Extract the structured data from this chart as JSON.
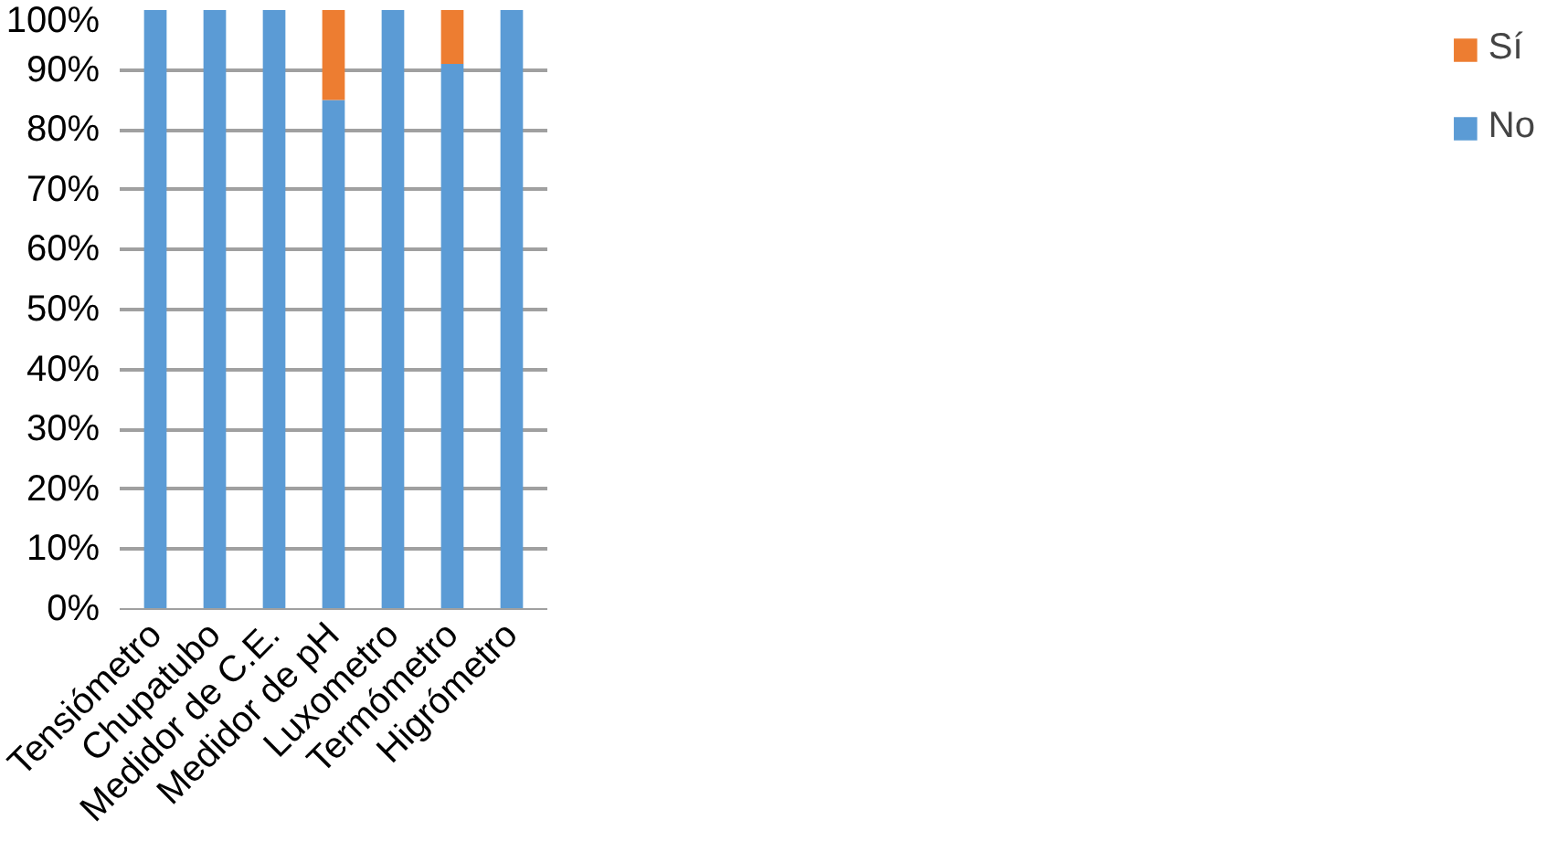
{
  "chart_data": {
    "type": "bar",
    "stacked": true,
    "categories": [
      "Tensiómetro",
      "Chupatubo",
      "Medidor de C.E.",
      "Medidor de pH",
      "Luxometro",
      "Termómetro",
      "Higrómetro"
    ],
    "series": [
      {
        "name": "No",
        "color": "#5b9bd5",
        "values": [
          100,
          100,
          100,
          85,
          100,
          91,
          100
        ]
      },
      {
        "name": "Sí",
        "color": "#ed7d31",
        "values": [
          0,
          0,
          0,
          15,
          0,
          9,
          0
        ]
      }
    ],
    "ylim": [
      0,
      100
    ],
    "yticks": [
      {
        "value": 0,
        "label": "0%"
      },
      {
        "value": 10,
        "label": "10%"
      },
      {
        "value": 20,
        "label": "20%"
      },
      {
        "value": 30,
        "label": "30%"
      },
      {
        "value": 40,
        "label": "40%"
      },
      {
        "value": 50,
        "label": "50%"
      },
      {
        "value": 60,
        "label": "60%"
      },
      {
        "value": 70,
        "label": "70%"
      },
      {
        "value": 80,
        "label": "80%"
      },
      {
        "value": 90,
        "label": "90%"
      },
      {
        "value": 100,
        "label": "100%"
      }
    ],
    "grid": "y",
    "legend": "right"
  }
}
